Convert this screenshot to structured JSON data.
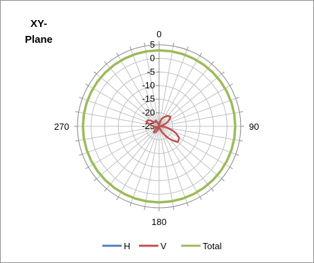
{
  "chart_data": {
    "type": "polar",
    "title": "XY-Plane",
    "title_lines": [
      "XY-",
      "Plane"
    ],
    "angle_unit": "degrees",
    "angle_ticks": [
      {
        "angle": 0,
        "label": "0"
      },
      {
        "angle": 90,
        "label": "90"
      },
      {
        "angle": 180,
        "label": "180"
      },
      {
        "angle": 270,
        "label": "270"
      }
    ],
    "angle_grid_step": 10,
    "rlim": [
      -25,
      5
    ],
    "r_ticks": [
      5,
      0,
      -5,
      -10,
      -15,
      -20,
      -25
    ],
    "r_tick_labels": [
      "5",
      "0",
      "-5",
      "-10",
      "-15",
      "-20",
      "-25"
    ],
    "grid": true,
    "legend_position": "bottom",
    "series": [
      {
        "name": "H",
        "color": "#4f81bd",
        "angles": [],
        "values": []
      },
      {
        "name": "V",
        "color": "#c0504d",
        "angles": [
          0,
          10,
          20,
          30,
          40,
          50,
          60,
          70,
          80,
          90,
          100,
          110,
          120,
          130,
          140,
          150,
          160,
          170,
          180,
          190,
          200,
          210,
          220,
          230,
          240,
          250,
          260,
          270,
          280,
          290,
          300,
          310,
          320,
          330,
          340,
          350,
          360
        ],
        "values": [
          -25,
          -24,
          -22,
          -21,
          -20,
          -19.5,
          -21,
          -23,
          -24.5,
          -24.5,
          -22,
          -19,
          -16.5,
          -16,
          -19,
          -22,
          -24,
          -24.5,
          -25,
          -24.5,
          -24,
          -22.5,
          -22,
          -23,
          -24.5,
          -24.5,
          -23.5,
          -23,
          -22,
          -20,
          -20.5,
          -22.5,
          -23,
          -22.5,
          -24,
          -24.5,
          -25
        ]
      },
      {
        "name": "Total",
        "color": "#9bbb59",
        "angles": [
          0,
          90,
          180,
          270,
          360
        ],
        "values": [
          3,
          3,
          3,
          3,
          3
        ]
      }
    ]
  }
}
